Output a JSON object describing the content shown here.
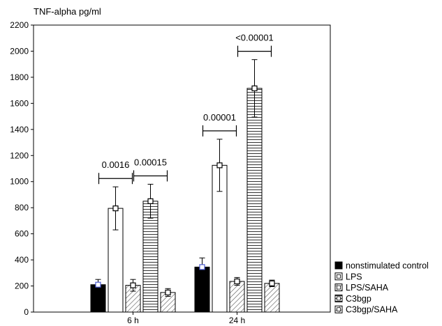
{
  "chart_data": {
    "type": "bar",
    "ylabel": "TNF-alpha pg/ml",
    "ylim": [
      0,
      2200
    ],
    "yticks": [
      0,
      200,
      400,
      600,
      800,
      1000,
      1200,
      1400,
      1600,
      1800,
      2000,
      2200
    ],
    "categories": [
      "6 h",
      "24 h"
    ],
    "grid": false,
    "legend_position": "bottom-right",
    "series": [
      {
        "name": "nonstimulated control",
        "pattern": "solid-black",
        "values": [
          210,
          345
        ],
        "errors": [
          40,
          70
        ]
      },
      {
        "name": "LPS",
        "pattern": "white",
        "values": [
          795,
          1125
        ],
        "errors": [
          165,
          200
        ]
      },
      {
        "name": "LPS/SAHA",
        "pattern": "diagonal-hatch",
        "values": [
          205,
          235
        ],
        "errors": [
          45,
          30
        ]
      },
      {
        "name": "C3bgp",
        "pattern": "horizontal-lines",
        "values": [
          850,
          1715
        ],
        "errors": [
          130,
          220
        ]
      },
      {
        "name": "C3bgp/SAHA",
        "pattern": "diagonal-hatch",
        "values": [
          150,
          220
        ],
        "errors": [
          30,
          25
        ]
      }
    ],
    "annotations": [
      {
        "text": "0.0016",
        "category": "6 h",
        "series": "LPS"
      },
      {
        "text": "0.00015",
        "category": "6 h",
        "series": "C3bgp"
      },
      {
        "text": "0.00001",
        "category": "24 h",
        "series": "LPS"
      },
      {
        "text": "<0.00001",
        "category": "24 h",
        "series": "C3bgp"
      }
    ]
  }
}
